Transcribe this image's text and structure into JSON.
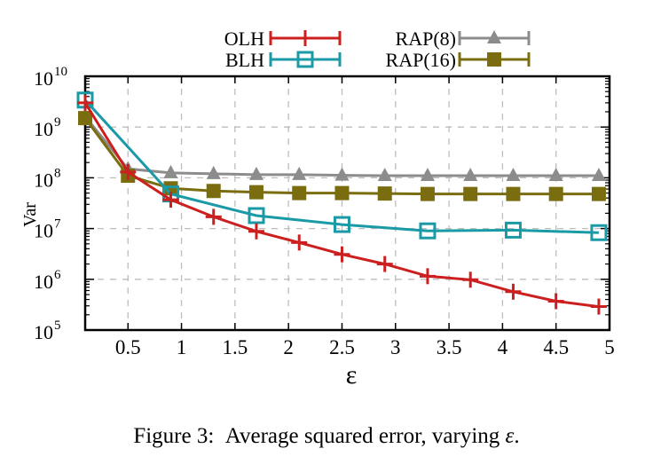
{
  "chart_data": {
    "type": "line",
    "xlabel": "ε",
    "ylabel": "Var",
    "yscale": "log",
    "xlim": [
      0.1,
      4.9
    ],
    "ylim_exponent": [
      5,
      10
    ],
    "x_ticks": [
      0.5,
      1,
      1.5,
      2,
      2.5,
      3,
      3.5,
      4,
      4.5,
      5
    ],
    "x_tick_labels": [
      "0.5",
      "1",
      "1.5",
      "2",
      "2.5",
      "3",
      "3.5",
      "4",
      "4.5",
      "5"
    ],
    "y_tick_base": "10",
    "y_tick_exponents": [
      "5",
      "6",
      "7",
      "8",
      "9",
      "10"
    ],
    "grid": true,
    "legend_position": "top",
    "x": [
      0.1,
      0.5,
      0.9,
      1.3,
      1.7,
      2.1,
      2.5,
      2.9,
      3.3,
      3.7,
      4.1,
      4.5,
      4.9
    ],
    "series": [
      {
        "name": "OLH",
        "color": "#cc1f1f",
        "marker": "plus",
        "x": [
          0.1,
          0.5,
          0.9,
          1.3,
          1.7,
          2.1,
          2.5,
          2.9,
          3.3,
          3.7,
          4.1,
          4.5,
          4.9
        ],
        "values": [
          3000000000,
          130000000,
          37000000,
          17000000,
          8800000,
          5300000,
          3100000,
          2000000,
          1150000,
          980000,
          570000,
          370000,
          290000
        ]
      },
      {
        "name": "BLH",
        "color": "#1a9aa6",
        "marker": "open-square",
        "x": [
          0.1,
          0.9,
          1.7,
          2.5,
          3.3,
          4.1,
          4.9
        ],
        "values": [
          3400000000,
          48000000,
          18000000,
          12000000,
          9000000,
          9300000,
          8300000
        ]
      },
      {
        "name": "RAP(8)",
        "color": "#8c8c8c",
        "marker": "filled-triangle",
        "x": [
          0.1,
          0.5,
          0.9,
          1.3,
          1.7,
          2.1,
          2.5,
          2.9,
          3.3,
          3.7,
          4.1,
          4.5,
          4.9
        ],
        "values": [
          1600000000,
          150000000,
          125000000,
          120000000,
          115000000,
          115000000,
          112000000,
          110000000,
          110000000,
          110000000,
          110000000,
          110000000,
          110000000
        ]
      },
      {
        "name": "RAP(16)",
        "color": "#7a6d10",
        "marker": "filled-square",
        "x": [
          0.1,
          0.5,
          0.9,
          1.3,
          1.7,
          2.1,
          2.5,
          2.9,
          3.3,
          3.7,
          4.1,
          4.5,
          4.9
        ],
        "values": [
          1500000000,
          110000000,
          62000000,
          55000000,
          52000000,
          50000000,
          50000000,
          49000000,
          48000000,
          48000000,
          48000000,
          48000000,
          48000000
        ]
      }
    ]
  },
  "caption": {
    "prefix": "Figure 3:",
    "text": "Average squared error, varying",
    "symbol": "ε",
    "suffix": "."
  }
}
